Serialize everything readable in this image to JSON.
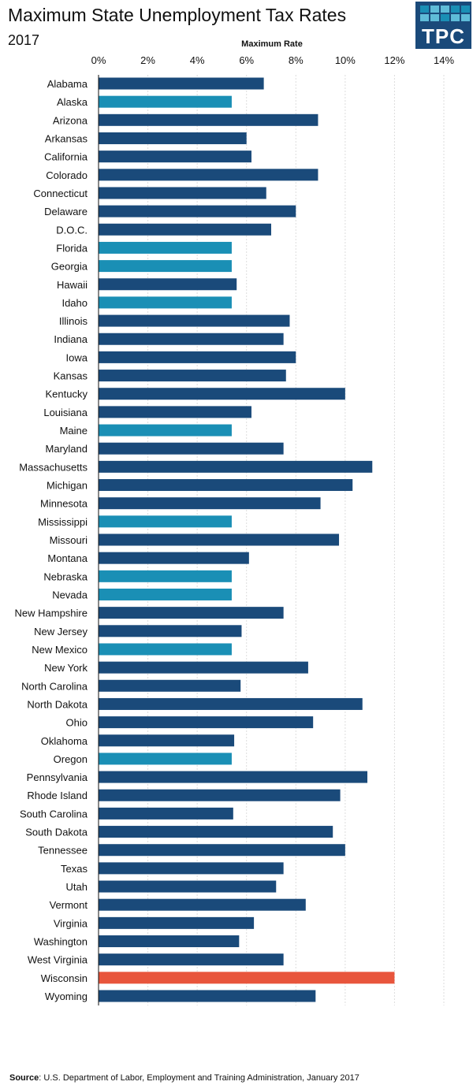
{
  "header": {
    "title": "Maximum State Unemployment Tax Rates",
    "subtitle": "2017",
    "logo_text": "TPC"
  },
  "source": {
    "label": "Source",
    "text": ": U.S. Department of Labor, Employment and Training Administration, January 2017"
  },
  "colors": {
    "default": "#1a4a7a",
    "highlight": "#1a8fb5",
    "wisconsin": "#e8553c"
  },
  "chart_data": {
    "type": "bar",
    "orientation": "horizontal",
    "title": "Maximum State Unemployment Tax Rates",
    "subtitle": "2017",
    "xlabel": "Maximum Rate",
    "ylabel": "",
    "xlim": [
      0,
      14
    ],
    "xticks": [
      0,
      2,
      4,
      6,
      8,
      10,
      12,
      14
    ],
    "xtick_labels": [
      "0%",
      "2%",
      "4%",
      "6%",
      "8%",
      "10%",
      "12%",
      "14%"
    ],
    "grid": "vertical dashed",
    "categories": [
      "Alabama",
      "Alaska",
      "Arizona",
      "Arkansas",
      "California",
      "Colorado",
      "Connecticut",
      "Delaware",
      "D.O.C.",
      "Florida",
      "Georgia",
      "Hawaii",
      "Idaho",
      "Illinois",
      "Indiana",
      "Iowa",
      "Kansas",
      "Kentucky",
      "Louisiana",
      "Maine",
      "Maryland",
      "Massachusetts",
      "Michigan",
      "Minnesota",
      "Mississippi",
      "Missouri",
      "Montana",
      "Nebraska",
      "Nevada",
      "New Hampshire",
      "New Jersey",
      "New Mexico",
      "New York",
      "North Carolina",
      "North Dakota",
      "Ohio",
      "Oklahoma",
      "Oregon",
      "Pennsylvania",
      "Rhode Island",
      "South Carolina",
      "South Dakota",
      "Tennessee",
      "Texas",
      "Utah",
      "Vermont",
      "Virginia",
      "Washington",
      "West Virginia",
      "Wisconsin",
      "Wyoming"
    ],
    "values": [
      6.7,
      5.4,
      8.9,
      6.0,
      6.2,
      8.9,
      6.8,
      8.0,
      7.0,
      5.4,
      5.4,
      5.6,
      5.4,
      7.75,
      7.5,
      8.0,
      7.6,
      10.0,
      6.2,
      5.4,
      7.5,
      11.1,
      10.3,
      9.0,
      5.4,
      9.75,
      6.1,
      5.4,
      5.4,
      7.5,
      5.8,
      5.4,
      8.5,
      5.76,
      10.7,
      8.7,
      5.5,
      5.4,
      10.9,
      9.8,
      5.46,
      9.5,
      10.0,
      7.5,
      7.2,
      8.4,
      6.3,
      5.7,
      7.5,
      12.0,
      8.8
    ],
    "color_group": [
      "d",
      "h",
      "d",
      "d",
      "d",
      "d",
      "d",
      "d",
      "d",
      "h",
      "h",
      "d",
      "h",
      "d",
      "d",
      "d",
      "d",
      "d",
      "d",
      "h",
      "d",
      "d",
      "d",
      "d",
      "h",
      "d",
      "d",
      "h",
      "h",
      "d",
      "d",
      "h",
      "d",
      "d",
      "d",
      "d",
      "d",
      "h",
      "d",
      "d",
      "d",
      "d",
      "d",
      "d",
      "d",
      "d",
      "d",
      "d",
      "d",
      "w",
      "d"
    ]
  }
}
